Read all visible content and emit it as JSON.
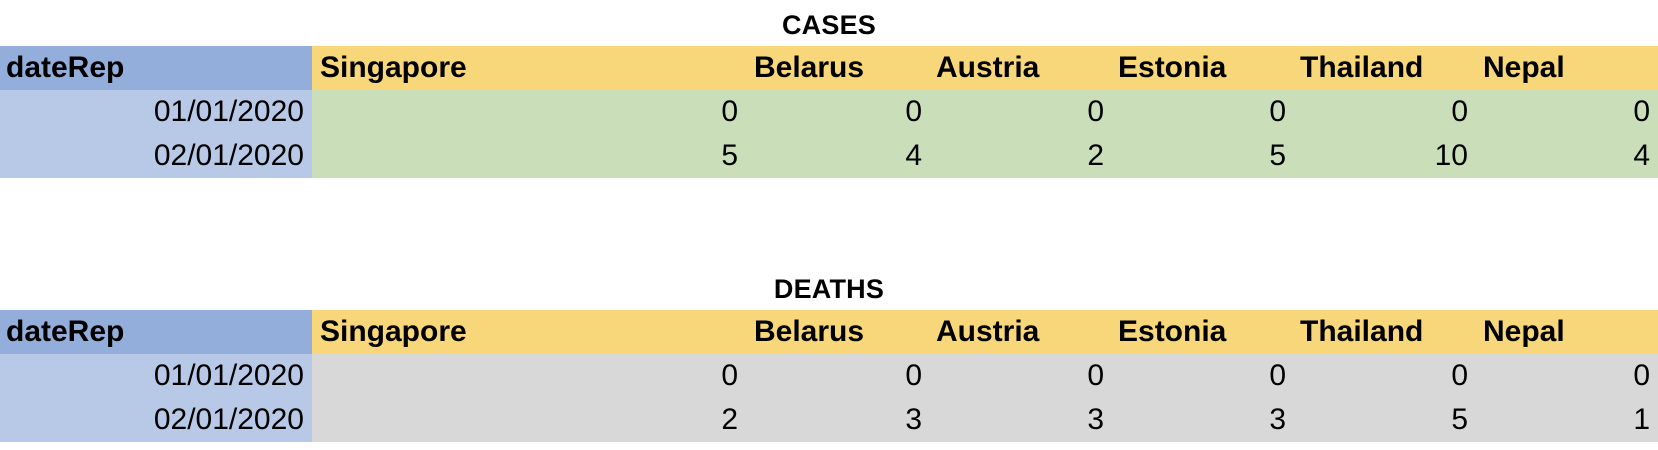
{
  "tables": {
    "cases": {
      "title": "CASES",
      "columns": {
        "date": "dateRep",
        "c0": "Singapore",
        "c1": "Belarus",
        "c2": "Austria",
        "c3": "Estonia",
        "c4": "Thailand",
        "c5": "Nepal"
      },
      "rows": [
        {
          "date": "01/01/2020",
          "v0": "0",
          "v1": "0",
          "v2": "0",
          "v3": "0",
          "v4": "0",
          "v5": "0"
        },
        {
          "date": "02/01/2020",
          "v0": "5",
          "v1": "4",
          "v2": "2",
          "v3": "5",
          "v4": "10",
          "v5": "4"
        }
      ],
      "band_color": "#cadfb9"
    },
    "deaths": {
      "title": "DEATHS",
      "columns": {
        "date": "dateRep",
        "c0": "Singapore",
        "c1": "Belarus",
        "c2": "Austria",
        "c3": "Estonia",
        "c4": "Thailand",
        "c5": "Nepal"
      },
      "rows": [
        {
          "date": "01/01/2020",
          "v0": "0",
          "v1": "0",
          "v2": "0",
          "v3": "0",
          "v4": "0",
          "v5": "0"
        },
        {
          "date": "02/01/2020",
          "v0": "2",
          "v1": "3",
          "v2": "3",
          "v3": "3",
          "v4": "5",
          "v5": "1"
        }
      ],
      "band_color": "#d8d8d8"
    }
  },
  "colors": {
    "header_date_bg": "#94aedb",
    "header_band_bg": "#f7d779",
    "date_column_bg": "#b8c9e7"
  }
}
